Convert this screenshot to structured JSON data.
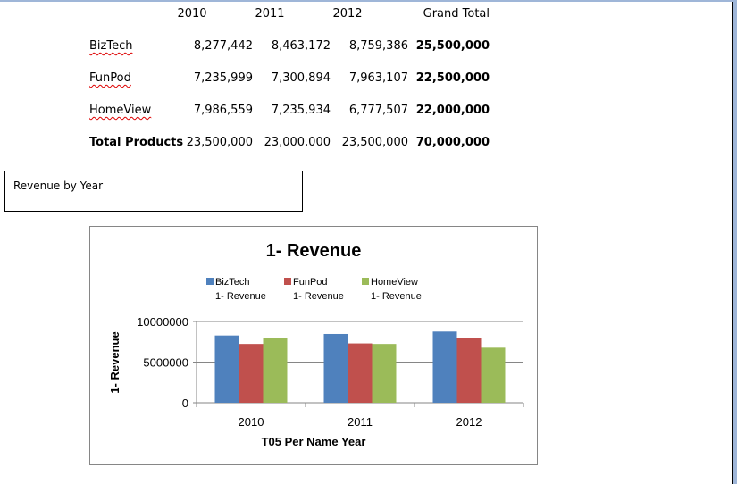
{
  "table": {
    "headers": [
      "2010",
      "2011",
      "2012",
      "Grand Total"
    ],
    "rows": [
      {
        "label": "BizTech",
        "values": [
          "8,277,442",
          "8,463,172",
          "8,759,386"
        ],
        "total": "25,500,000"
      },
      {
        "label": "FunPod",
        "values": [
          "7,235,999",
          "7,300,894",
          "7,963,107"
        ],
        "total": "22,500,000"
      },
      {
        "label": "HomeView",
        "values": [
          "7,986,559",
          "7,235,934",
          "6,777,507"
        ],
        "total": "22,000,000"
      },
      {
        "label": "Total Products",
        "values": [
          "23,500,000",
          "23,000,000",
          "23,500,000"
        ],
        "total": "70,000,000"
      }
    ]
  },
  "textbox": {
    "label": "Revenue by Year"
  },
  "chart_data": {
    "type": "bar",
    "title": "1- Revenue",
    "xlabel": "T05 Per Name Year",
    "ylabel": "1- Revenue",
    "categories": [
      "2010",
      "2011",
      "2012"
    ],
    "ylim": [
      0,
      10000000
    ],
    "yticks": [
      "0",
      "5000000",
      "10000000"
    ],
    "ytick_values": [
      0,
      5000000,
      10000000
    ],
    "grid": true,
    "legend": "top",
    "series": [
      {
        "name": "BizTech",
        "sub": "1- Revenue",
        "color": "#4f81bd",
        "values": [
          8277442,
          8463172,
          8759386
        ]
      },
      {
        "name": "FunPod",
        "sub": "1- Revenue",
        "color": "#c0504d",
        "values": [
          7235999,
          7300894,
          7963107
        ]
      },
      {
        "name": "HomeView",
        "sub": "1- Revenue",
        "color": "#9bbb59",
        "values": [
          7986559,
          7235934,
          6777507
        ]
      }
    ]
  }
}
